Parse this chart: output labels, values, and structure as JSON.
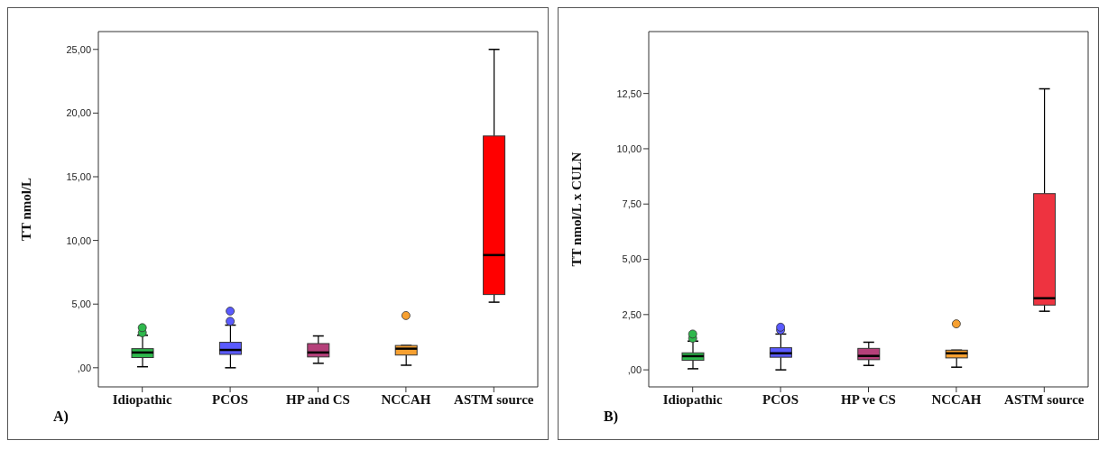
{
  "chart_data": [
    {
      "type": "box",
      "ylabel": "TT nmol/L",
      "categories": [
        "Idiopathic",
        "PCOS",
        "HP and CS",
        "NCCAH",
        "ASTM source"
      ],
      "colors": [
        "#2eb84c",
        "#5a5aff",
        "#b5407a",
        "#f7a030",
        "#ff0000"
      ],
      "boxes": [
        {
          "low": 0.08,
          "q1": 0.8,
          "median": 1.2,
          "q3": 1.5,
          "high": 2.55,
          "outliers": [
            2.75,
            3.15
          ]
        },
        {
          "low": 0,
          "q1": 1.05,
          "median": 1.4,
          "q3": 2.0,
          "high": 3.35,
          "outliers": [
            3.65,
            4.45
          ]
        },
        {
          "low": 0.35,
          "q1": 0.85,
          "median": 1.2,
          "q3": 1.9,
          "high": 2.5
        },
        {
          "low": 0.2,
          "q1": 1.0,
          "median": 1.5,
          "q3": 1.75,
          "high": 1.75,
          "outliers": [
            4.1
          ]
        },
        {
          "low": 5.15,
          "q1": 5.75,
          "median": 8.85,
          "q3": 18.2,
          "high": 25
        }
      ],
      "ylim": [
        -1.5,
        26.4
      ],
      "yticks": [
        {
          "value": 0,
          "label": ",00"
        },
        {
          "value": 5,
          "label": "5,00"
        },
        {
          "value": 10,
          "label": "10,00"
        },
        {
          "value": 15,
          "label": "15,00"
        },
        {
          "value": 20,
          "label": "20,00"
        },
        {
          "value": 25,
          "label": "25,00"
        }
      ],
      "annotations": [
        "A)"
      ]
    },
    {
      "type": "box",
      "ylabel": "TT nmol/L x CULN",
      "categories": [
        "Idiopathic",
        "PCOS",
        "HP ve CS",
        "NCCAH",
        "ASTM source"
      ],
      "colors": [
        "#2eb84c",
        "#5a5aff",
        "#b5407a",
        "#f7a030",
        "#ee3340"
      ],
      "boxes": [
        {
          "low": 0.05,
          "q1": 0.43,
          "median": 0.62,
          "q3": 0.77,
          "high": 1.3,
          "outliers": [
            1.43,
            1.62
          ]
        },
        {
          "low": 0,
          "q1": 0.57,
          "median": 0.75,
          "q3": 1.0,
          "high": 1.62,
          "outliers": [
            1.8,
            1.93
          ]
        },
        {
          "low": 0.2,
          "q1": 0.46,
          "median": 0.63,
          "q3": 0.97,
          "high": 1.25
        },
        {
          "low": 0.12,
          "q1": 0.54,
          "median": 0.75,
          "q3": 0.89,
          "high": 0.89,
          "outliers": [
            2.08
          ]
        },
        {
          "low": 2.65,
          "q1": 2.93,
          "median": 3.24,
          "q3": 7.97,
          "high": 12.71
        }
      ],
      "ylim": [
        -0.77,
        15.3
      ],
      "yticks": [
        {
          "value": 0,
          "label": ",00"
        },
        {
          "value": 2.5,
          "label": "2,50"
        },
        {
          "value": 5,
          "label": "5,00"
        },
        {
          "value": 7.5,
          "label": "7,50"
        },
        {
          "value": 10,
          "label": "10,00"
        },
        {
          "value": 12.5,
          "label": "12,50"
        }
      ],
      "annotations": [
        "B)"
      ]
    }
  ]
}
